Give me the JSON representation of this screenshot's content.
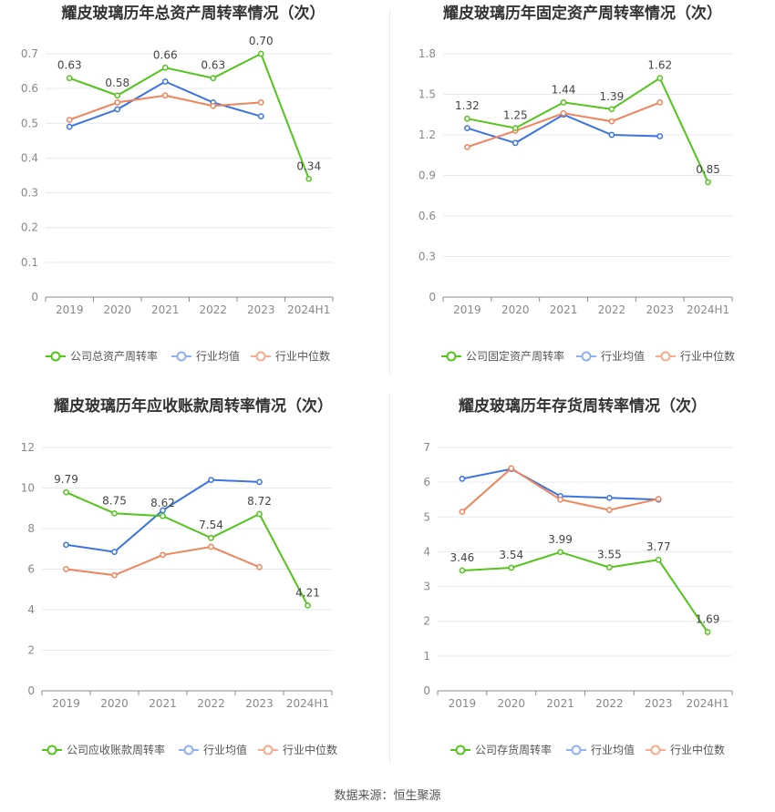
{
  "source_label": "数据来源：恒生聚源",
  "colors": {
    "company": "#52c41a",
    "avg": "#3b74e0",
    "median": "#f0845a",
    "legend_avg": "#8fb0ef",
    "legend_median": "#f5ab8f"
  },
  "legend_labels": {
    "avg": "行业均值",
    "median": "行业中位数"
  },
  "chart_data": [
    {
      "type": "line",
      "title": "耀皮玻璃历年总资产周转率情况（次）",
      "categories": [
        "2019",
        "2020",
        "2021",
        "2022",
        "2023",
        "2024H1"
      ],
      "ylim": [
        0,
        0.7
      ],
      "yticks": [
        "0",
        "0.1",
        "0.2",
        "0.3",
        "0.4",
        "0.5",
        "0.6",
        "0.7"
      ],
      "grid": true,
      "legend_position": "bottom",
      "series": [
        {
          "name": "公司总资产周转率",
          "values": [
            0.63,
            0.58,
            0.66,
            0.63,
            0.7,
            0.34
          ],
          "labels": [
            "0.63",
            "0.58",
            "0.66",
            "0.63",
            "0.70",
            "0.34"
          ]
        },
        {
          "name": "行业均值",
          "values": [
            0.49,
            0.54,
            0.62,
            0.56,
            0.52,
            null
          ]
        },
        {
          "name": "行业中位数",
          "values": [
            0.51,
            0.56,
            0.58,
            0.55,
            0.56,
            null
          ]
        }
      ]
    },
    {
      "type": "line",
      "title": "耀皮玻璃历年固定资产周转率情况（次）",
      "categories": [
        "2019",
        "2020",
        "2021",
        "2022",
        "2023",
        "2024H1"
      ],
      "ylim": [
        0,
        1.8
      ],
      "yticks": [
        "0",
        "0.3",
        "0.6",
        "0.9",
        "1.2",
        "1.5",
        "1.8"
      ],
      "grid": true,
      "legend_position": "bottom",
      "series": [
        {
          "name": "公司固定资产周转率",
          "values": [
            1.32,
            1.25,
            1.44,
            1.39,
            1.62,
            0.85
          ],
          "labels": [
            "1.32",
            "1.25",
            "1.44",
            "1.39",
            "1.62",
            "0.85"
          ]
        },
        {
          "name": "行业均值",
          "values": [
            1.25,
            1.14,
            1.35,
            1.2,
            1.19,
            null
          ]
        },
        {
          "name": "行业中位数",
          "values": [
            1.11,
            1.23,
            1.36,
            1.3,
            1.44,
            null
          ]
        }
      ]
    },
    {
      "type": "line",
      "title": "耀皮玻璃历年应收账款周转率情况（次）",
      "categories": [
        "2019",
        "2020",
        "2021",
        "2022",
        "2023",
        "2024H1"
      ],
      "ylim": [
        0,
        12
      ],
      "yticks": [
        "0",
        "2",
        "4",
        "6",
        "8",
        "10",
        "12"
      ],
      "grid": true,
      "legend_position": "bottom",
      "series": [
        {
          "name": "公司应收账款周转率",
          "values": [
            9.79,
            8.75,
            8.62,
            7.54,
            8.72,
            4.21
          ],
          "labels": [
            "9.79",
            "8.75",
            "8.62",
            "7.54",
            "8.72",
            "4.21"
          ]
        },
        {
          "name": "行业均值",
          "values": [
            7.2,
            6.85,
            8.9,
            10.4,
            10.3,
            null
          ]
        },
        {
          "name": "行业中位数",
          "values": [
            6.0,
            5.7,
            6.7,
            7.1,
            6.1,
            null
          ]
        }
      ]
    },
    {
      "type": "line",
      "title": "耀皮玻璃历年存货周转率情况（次）",
      "categories": [
        "2019",
        "2020",
        "2021",
        "2022",
        "2023",
        "2024H1"
      ],
      "ylim": [
        0,
        7
      ],
      "yticks": [
        "0",
        "1",
        "2",
        "3",
        "4",
        "5",
        "6",
        "7"
      ],
      "grid": true,
      "legend_position": "bottom",
      "series": [
        {
          "name": "公司存货周转率",
          "values": [
            3.46,
            3.54,
            3.99,
            3.55,
            3.77,
            1.69
          ],
          "labels": [
            "3.46",
            "3.54",
            "3.99",
            "3.55",
            "3.77",
            "1.69"
          ]
        },
        {
          "name": "行业均值",
          "values": [
            6.1,
            6.38,
            5.6,
            5.55,
            5.5,
            null
          ]
        },
        {
          "name": "行业中位数",
          "values": [
            5.15,
            6.4,
            5.5,
            5.2,
            5.52,
            null
          ]
        }
      ]
    }
  ]
}
